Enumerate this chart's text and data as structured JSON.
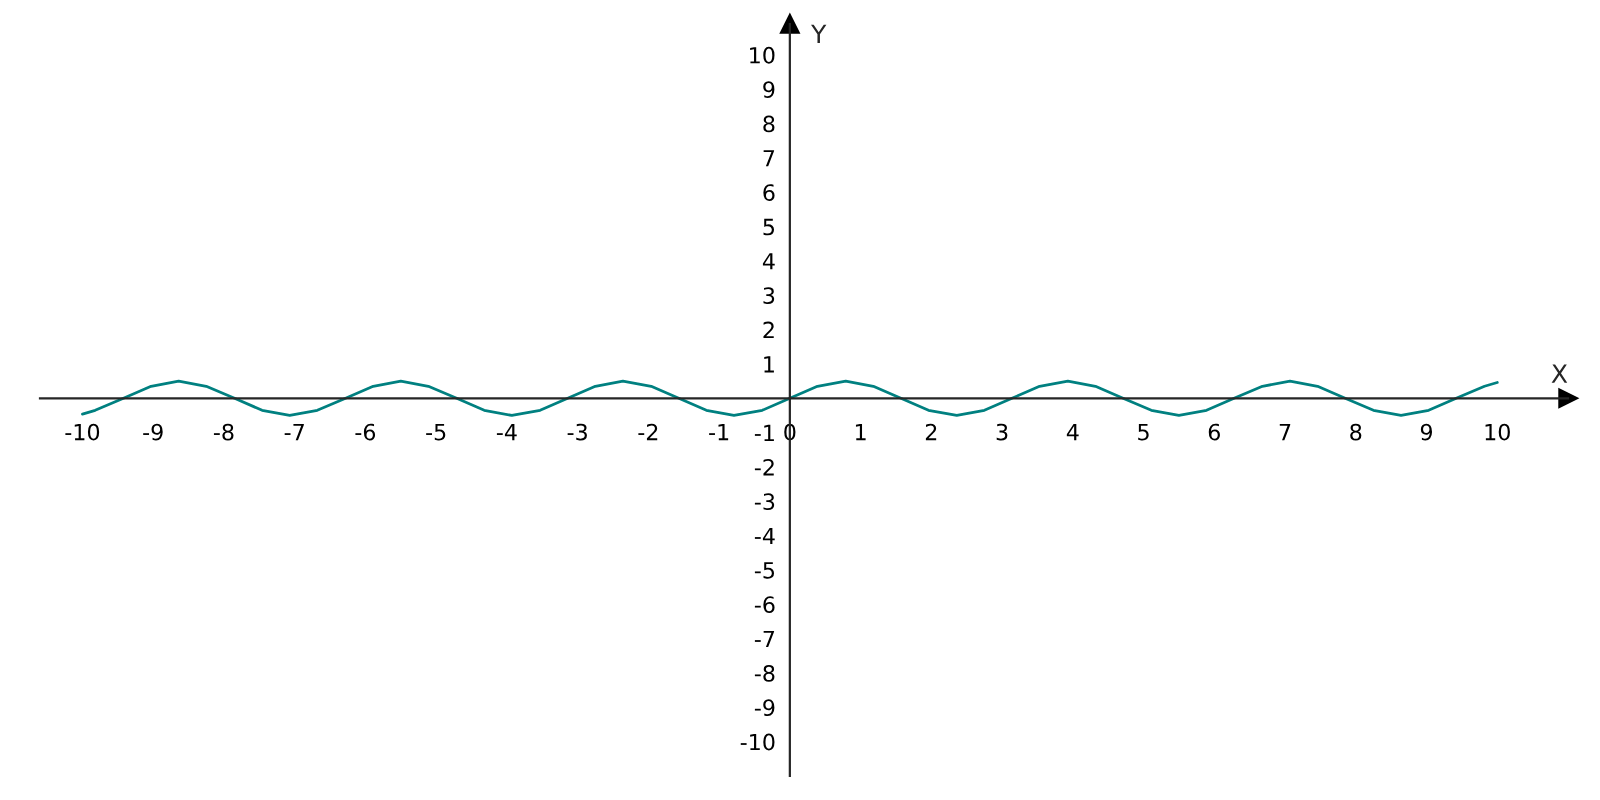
{
  "chart_data": {
    "type": "line",
    "xlabel": "X",
    "ylabel": "Y",
    "xlim": [
      -10.6,
      11
    ],
    "ylim": [
      -11,
      10.9
    ],
    "xticks": [
      -10,
      -9,
      -8,
      -7,
      -6,
      -5,
      -4,
      -3,
      -2,
      -1,
      0,
      1,
      2,
      3,
      4,
      5,
      6,
      7,
      8,
      9,
      10
    ],
    "yticks": [
      -10,
      -9,
      -8,
      -7,
      -6,
      -5,
      -4,
      -3,
      -2,
      -1,
      1,
      2,
      3,
      4,
      5,
      6,
      7,
      8,
      9,
      10
    ],
    "grid": false,
    "marker": "none",
    "line_style": "solid",
    "series": [
      {
        "color": "#008080",
        "x": [
          -10,
          -9.82,
          -9.42,
          -9.03,
          -8.64,
          -8.25,
          -7.85,
          -7.46,
          -7.07,
          -6.68,
          -6.28,
          -5.89,
          -5.5,
          -5.11,
          -4.71,
          -4.32,
          -3.93,
          -3.53,
          -3.14,
          -2.75,
          -2.36,
          -1.96,
          -1.57,
          -1.18,
          -0.79,
          -0.39,
          0,
          0.39,
          0.79,
          1.18,
          1.57,
          1.96,
          2.36,
          2.75,
          3.14,
          3.53,
          3.93,
          4.32,
          4.71,
          5.11,
          5.5,
          5.89,
          6.28,
          6.68,
          7.07,
          7.46,
          7.85,
          8.25,
          8.64,
          9.03,
          9.42,
          9.82,
          10
        ],
        "values": [
          -0.46,
          -0.35,
          0,
          0.35,
          0.5,
          0.35,
          0,
          -0.35,
          -0.5,
          -0.35,
          0,
          0.35,
          0.5,
          0.35,
          0,
          -0.35,
          -0.5,
          -0.35,
          0,
          0.35,
          0.5,
          0.35,
          0,
          -0.35,
          -0.5,
          -0.35,
          0,
          0.35,
          0.5,
          0.35,
          0,
          -0.35,
          -0.5,
          -0.35,
          0,
          0.35,
          0.5,
          0.35,
          0,
          -0.35,
          -0.5,
          -0.35,
          0,
          0.35,
          0.5,
          0.35,
          0,
          -0.35,
          -0.5,
          -0.35,
          0,
          0.35,
          0.46
        ]
      }
    ]
  }
}
